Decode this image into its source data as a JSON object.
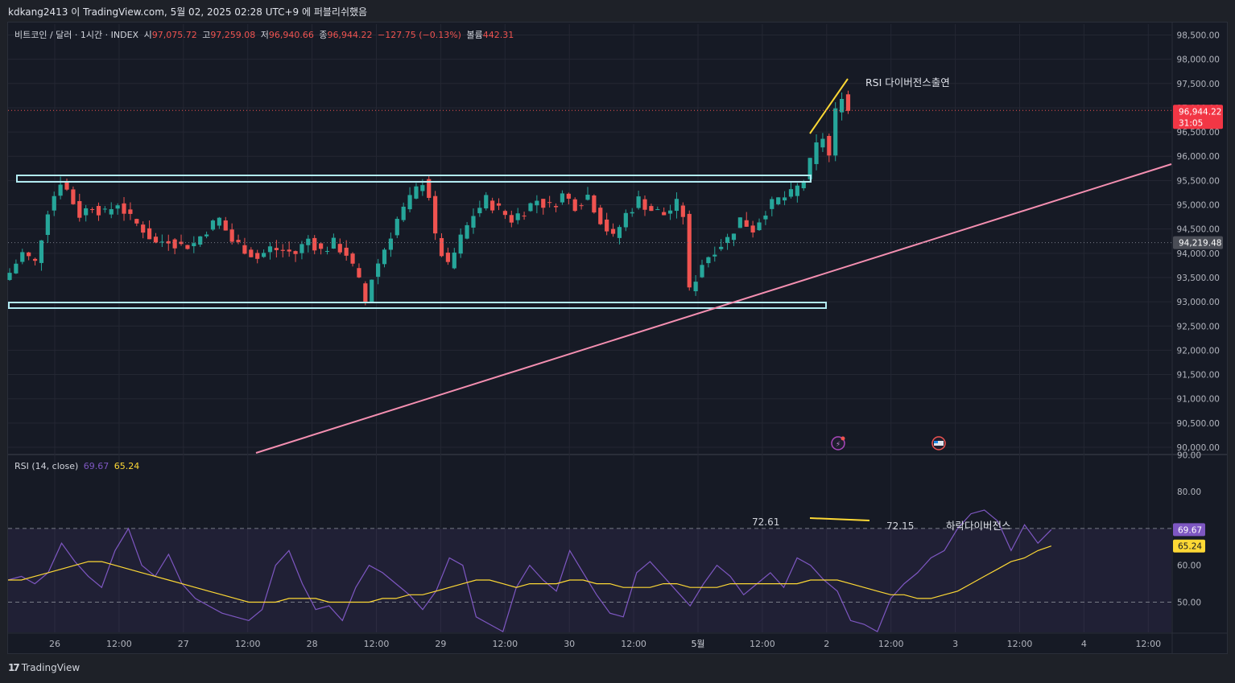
{
  "caption": "kdkang2413 이 TradingView.com, 5월 02, 2025 02:28 UTC+9 에 퍼블리쉬했음",
  "brand": "TradingView",
  "legend": {
    "symbol": "비트코인 / 달러 · 1시간 · INDEX",
    "o_label": "시",
    "o": "97,075.72",
    "h_label": "고",
    "h": "97,259.08",
    "l_label": "저",
    "l": "96,940.66",
    "c_label": "종",
    "c": "96,944.22",
    "chg": "−127.75 (−0.13%)",
    "v_label": "볼륨",
    "v": "442.31"
  },
  "rsi_legend": {
    "name": "RSI (14, close)",
    "rsi": "69.67",
    "ma": "65.24"
  },
  "colors": {
    "up": "#26a69a",
    "down": "#ef5350",
    "rsi": "#7e57c2",
    "rsi_ma": "#fdd835",
    "trend": "#f48fb1",
    "box": "#b2ebf2"
  },
  "chart_data": [
    {
      "type": "candlestick",
      "price_axis_ticks": [
        "98,500.00",
        "98,000.00",
        "97,500.00",
        "97,000.00",
        "96,500.00",
        "96,000.00",
        "95,500.00",
        "95,000.00",
        "94,500.00",
        "94,000.00",
        "93,500.00",
        "93,000.00",
        "92,500.00",
        "92,000.00",
        "91,500.00",
        "91,000.00",
        "90,500.00",
        "90,000.00"
      ],
      "ylim": [
        89900,
        98700
      ],
      "time_axis_ticks": [
        "26",
        "12:00",
        "27",
        "12:00",
        "28",
        "12:00",
        "29",
        "12:00",
        "30",
        "12:00",
        "5월",
        "12:00",
        "2",
        "12:00",
        "3",
        "12:00",
        "4",
        "12:00"
      ],
      "last_price_label": "96,944.22",
      "countdown_label": "31:05",
      "crosshair_price_label": "94,219.48",
      "crosshair_price": 94219.48,
      "last_price": 96944.22,
      "close_path": [
        [
          0,
          93600
        ],
        [
          2,
          94000
        ],
        [
          4,
          93800
        ],
        [
          6,
          94900
        ],
        [
          8,
          95500
        ],
        [
          9,
          95300
        ],
        [
          11,
          94800
        ],
        [
          13,
          95000
        ],
        [
          15,
          94800
        ],
        [
          17,
          95050
        ],
        [
          19,
          94700
        ],
        [
          21,
          94500
        ],
        [
          23,
          94200
        ],
        [
          25,
          94300
        ],
        [
          27,
          94150
        ],
        [
          29,
          94200
        ],
        [
          31,
          94500
        ],
        [
          33,
          94700
        ],
        [
          35,
          94250
        ],
        [
          37,
          94100
        ],
        [
          39,
          93900
        ],
        [
          41,
          94100
        ],
        [
          43,
          94050
        ],
        [
          45,
          94000
        ],
        [
          47,
          94300
        ],
        [
          49,
          94050
        ],
        [
          51,
          94200
        ],
        [
          53,
          94000
        ],
        [
          55,
          93400
        ],
        [
          56,
          93000
        ],
        [
          57,
          93500
        ],
        [
          59,
          94100
        ],
        [
          61,
          94700
        ],
        [
          63,
          95100
        ],
        [
          65,
          95500
        ],
        [
          66,
          95200
        ],
        [
          67,
          94300
        ],
        [
          69,
          93700
        ],
        [
          71,
          94300
        ],
        [
          73,
          94800
        ],
        [
          75,
          95100
        ],
        [
          77,
          94900
        ],
        [
          79,
          94700
        ],
        [
          81,
          94900
        ],
        [
          83,
          95100
        ],
        [
          85,
          94950
        ],
        [
          87,
          95200
        ],
        [
          89,
          95000
        ],
        [
          91,
          95200
        ],
        [
          93,
          94700
        ],
        [
          95,
          94300
        ],
        [
          97,
          94800
        ],
        [
          99,
          95100
        ],
        [
          101,
          94900
        ],
        [
          103,
          94800
        ],
        [
          105,
          95000
        ],
        [
          106,
          94800
        ],
        [
          107,
          93200
        ],
        [
          109,
          93800
        ],
        [
          111,
          94100
        ],
        [
          113,
          94300
        ],
        [
          115,
          94700
        ],
        [
          117,
          94500
        ],
        [
          119,
          94900
        ],
        [
          121,
          95100
        ],
        [
          123,
          95200
        ],
        [
          125,
          95500
        ],
        [
          127,
          96200
        ],
        [
          128,
          96400
        ],
        [
          129,
          96000
        ],
        [
          130,
          96900
        ],
        [
          131,
          97300
        ],
        [
          132,
          96944
        ]
      ],
      "annotations": [
        {
          "text": "RSI 다이버전스출연"
        }
      ]
    },
    {
      "type": "line",
      "series": [
        {
          "name": "RSI",
          "values": [
            56,
            57,
            55,
            58,
            66,
            61,
            57,
            54,
            64,
            70,
            60,
            57,
            63,
            55,
            51,
            49,
            47,
            46,
            45,
            48,
            60,
            64,
            55,
            48,
            49,
            45,
            54,
            60,
            58,
            55,
            52,
            48,
            53,
            62,
            60,
            46,
            44,
            42,
            54,
            60,
            56,
            53,
            64,
            58,
            52,
            47,
            46,
            58,
            61,
            57,
            53,
            49,
            55,
            60,
            57,
            52,
            55,
            58,
            54,
            62,
            60,
            56,
            53,
            45,
            44,
            42,
            51,
            55,
            58,
            62,
            64,
            70,
            74,
            75,
            72,
            64,
            71,
            66,
            69.67
          ]
        },
        {
          "name": "RSI MA",
          "values": [
            56,
            56,
            57,
            58,
            59,
            60,
            61,
            61,
            60,
            59,
            58,
            57,
            56,
            55,
            54,
            53,
            52,
            51,
            50,
            50,
            50,
            51,
            51,
            51,
            50,
            50,
            50,
            50,
            51,
            51,
            52,
            52,
            53,
            54,
            55,
            56,
            56,
            55,
            54,
            55,
            55,
            55,
            56,
            56,
            55,
            55,
            54,
            54,
            54,
            55,
            55,
            54,
            54,
            54,
            55,
            55,
            55,
            55,
            55,
            55,
            56,
            56,
            56,
            55,
            54,
            53,
            52,
            52,
            51,
            51,
            52,
            53,
            55,
            57,
            59,
            61,
            62,
            64,
            65.24
          ]
        }
      ],
      "yaxis_ticks": [
        "90.00",
        "80.00",
        "70.00",
        "60.00",
        "50.00"
      ],
      "ylim": [
        40,
        90
      ],
      "bands": [
        70,
        50
      ],
      "point_labels": [
        "72.61",
        "72.15"
      ],
      "annotations": [
        {
          "text": "하락다이버전스"
        }
      ]
    }
  ]
}
